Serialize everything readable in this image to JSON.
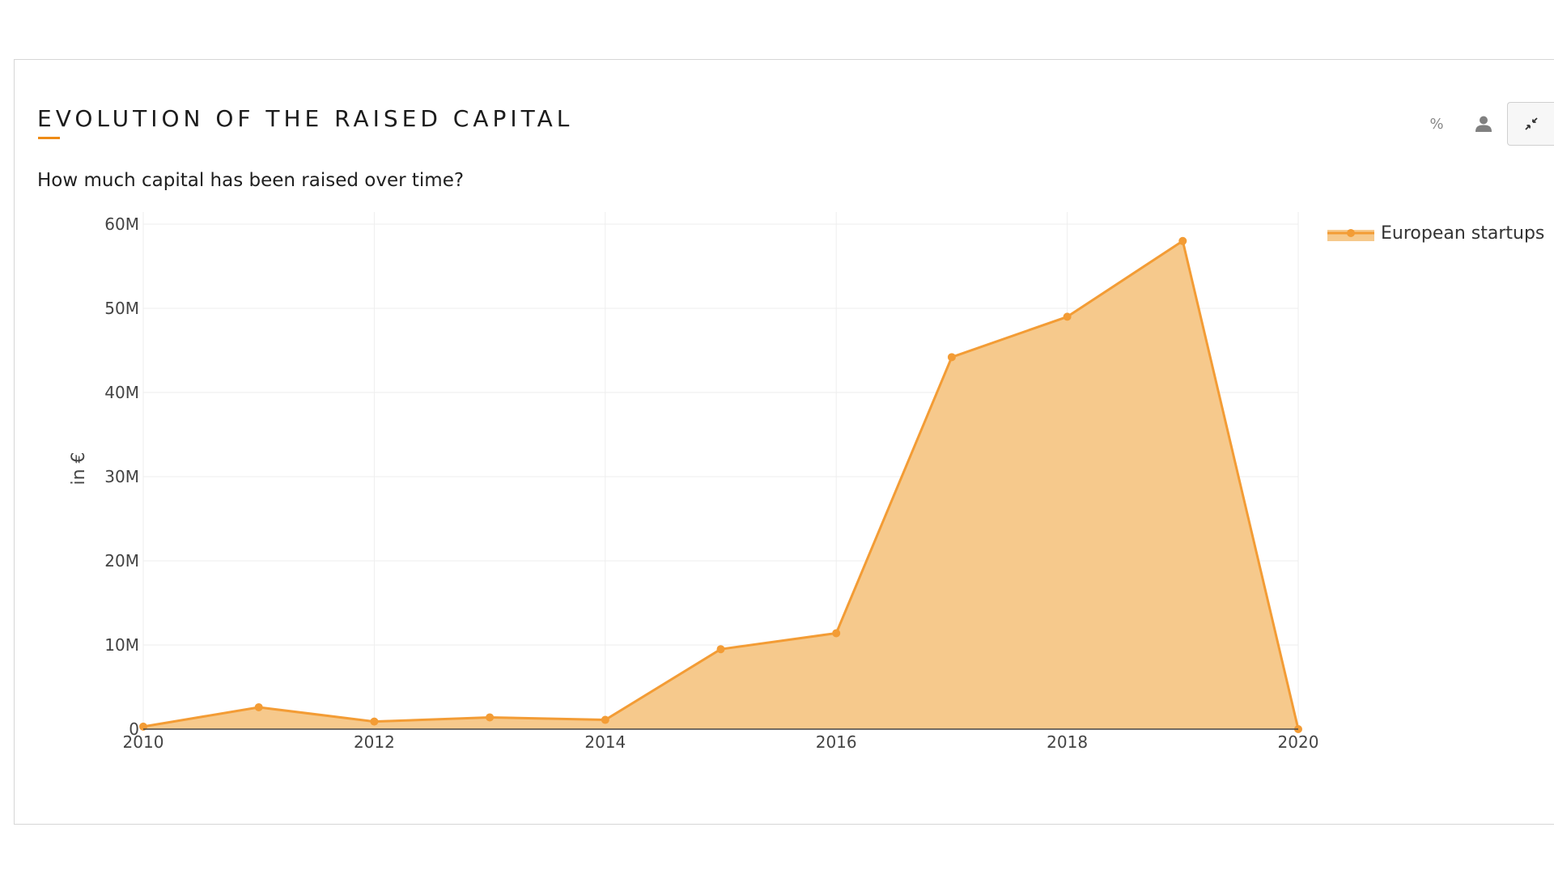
{
  "header": {
    "title": "EVOLUTION OF THE RAISED CAPITAL",
    "subtitle": "How much capital has been raised over time?"
  },
  "toolbar": {
    "percent_label": "%",
    "items": [
      {
        "name": "percent",
        "icon": "percent-icon"
      },
      {
        "name": "user",
        "icon": "person-icon"
      },
      {
        "name": "collapse",
        "icon": "collapse-icon"
      }
    ]
  },
  "colors": {
    "accent": "#ee8b16",
    "line": "#f39c35",
    "fill": "#f6c98c",
    "grid": "#eeeeee",
    "axis": "#444444"
  },
  "chart_data": {
    "type": "area",
    "x": [
      2010,
      2011,
      2012,
      2013,
      2014,
      2015,
      2016,
      2017,
      2018,
      2019,
      2020
    ],
    "series": [
      {
        "name": "European startups",
        "values": [
          300000,
          2600000,
          900000,
          1400000,
          1100000,
          9500000,
          11400000,
          44200000,
          49000000,
          58000000,
          0
        ]
      }
    ],
    "xticks": [
      "2010",
      "2012",
      "2014",
      "2016",
      "2018",
      "2020"
    ],
    "yticks": [
      "0",
      "10M",
      "20M",
      "30M",
      "40M",
      "50M",
      "60M"
    ],
    "xlim": [
      2010,
      2020
    ],
    "ylim": [
      0,
      60000000
    ],
    "ylabel": "in €",
    "xlabel": "",
    "grid": true,
    "legend_position": "top-right",
    "markers": true
  }
}
